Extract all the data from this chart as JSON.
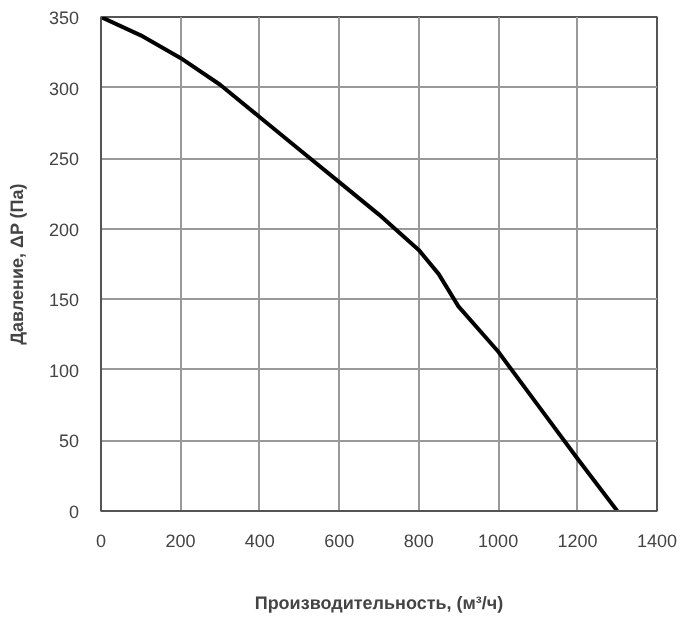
{
  "chart_data": {
    "type": "line",
    "xlabel": "Производительность, (м³/ч)",
    "ylabel": "Давление, ΔP (Па)",
    "x": [
      0,
      100,
      200,
      300,
      400,
      500,
      600,
      700,
      800,
      850,
      900,
      1000,
      1100,
      1200,
      1300
    ],
    "series": [
      {
        "color": "#000000",
        "values": [
          350,
          337,
          321,
          302,
          279,
          256,
          233,
          210,
          185,
          168,
          145,
          113,
          75,
          37,
          0
        ]
      }
    ],
    "xlim": [
      0,
      1400
    ],
    "ylim": [
      0,
      350
    ],
    "xticks": [
      0,
      200,
      400,
      600,
      800,
      1000,
      1200,
      1400
    ],
    "yticks": [
      0,
      50,
      100,
      150,
      200,
      250,
      300,
      350
    ],
    "grid": true,
    "marker": "none",
    "line_style": "solid"
  }
}
